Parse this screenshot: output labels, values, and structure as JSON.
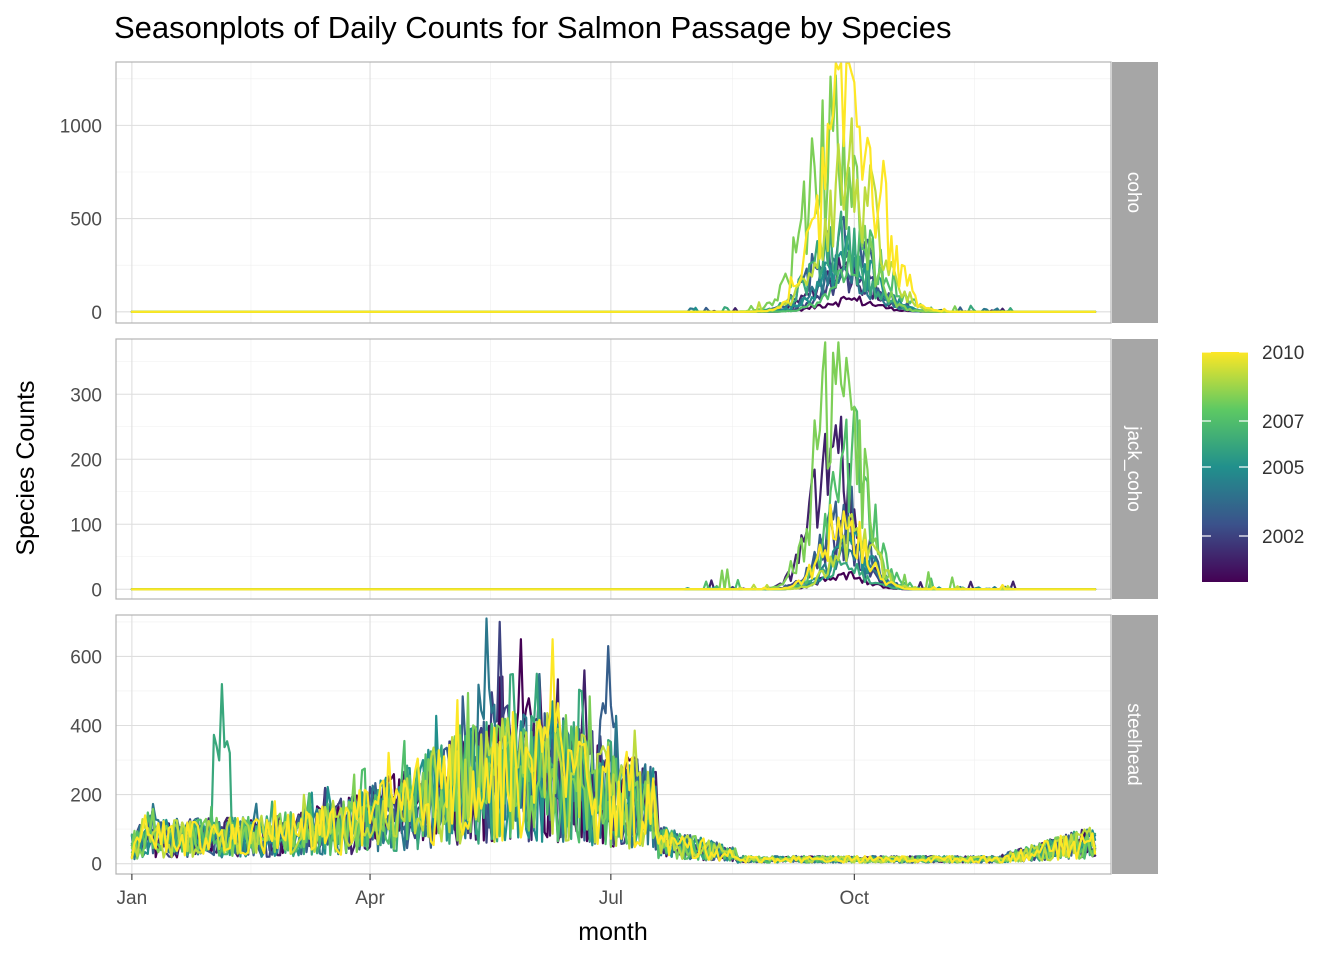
{
  "chart_data": {
    "type": "line",
    "title": "Seasonplots of Daily Counts for Salmon Passage by Species",
    "xlabel": "month",
    "ylabel": "Species Counts",
    "x_unit": "day_of_year",
    "x_ticks": [
      {
        "label": "Jan",
        "value": 1
      },
      {
        "label": "Apr",
        "value": 91
      },
      {
        "label": "Jul",
        "value": 182
      },
      {
        "label": "Oct",
        "value": 274
      }
    ],
    "legend": {
      "position": "right",
      "type": "colorbar",
      "palette": [
        "#440154",
        "#3b528b",
        "#21908c",
        "#5dc963",
        "#fde725"
      ],
      "range": [
        2000,
        2010
      ],
      "ticks": [
        {
          "label": "2002",
          "value": 2002
        },
        {
          "label": "2005",
          "value": 2005
        },
        {
          "label": "2007",
          "value": 2007
        },
        {
          "label": "2010",
          "value": 2010
        }
      ]
    },
    "series_years": [
      2000,
      2001,
      2002,
      2003,
      2004,
      2005,
      2006,
      2007,
      2008,
      2009,
      2010
    ],
    "panels": [
      {
        "strip": "coho",
        "ylim": [
          -60,
          1340
        ],
        "y_ticks": [
          {
            "label": "0",
            "value": 0
          },
          {
            "label": "500",
            "value": 500
          },
          {
            "label": "1000",
            "value": 1000
          }
        ],
        "season": {
          "start": 212,
          "end": 335
        },
        "peaks": {
          "2000": {
            "day": 272,
            "value": 70
          },
          "2001": {
            "day": 270,
            "value": 250
          },
          "2002": {
            "day": 274,
            "value": 210
          },
          "2003": {
            "day": 269,
            "value": 490
          },
          "2004": {
            "day": 270,
            "value": 240
          },
          "2005": {
            "day": 272,
            "value": 320
          },
          "2006": {
            "day": 268,
            "value": 410
          },
          "2007": {
            "day": 278,
            "value": 330
          },
          "2008": {
            "day": 266,
            "value": 970
          },
          "2009": {
            "day": 272,
            "value": 820
          },
          "2010": {
            "day": 273,
            "value": 1280
          }
        }
      },
      {
        "strip": "jack_coho",
        "ylim": [
          -15,
          385
        ],
        "y_ticks": [
          {
            "label": "0",
            "value": 0
          },
          {
            "label": "100",
            "value": 100
          },
          {
            "label": "200",
            "value": 200
          },
          {
            "label": "300",
            "value": 300
          }
        ],
        "season": {
          "start": 210,
          "end": 335
        },
        "peaks": {
          "2000": {
            "day": 270,
            "value": 25
          },
          "2001": {
            "day": 266,
            "value": 220
          },
          "2002": {
            "day": 268,
            "value": 90
          },
          "2003": {
            "day": 270,
            "value": 130
          },
          "2004": {
            "day": 272,
            "value": 60
          },
          "2005": {
            "day": 273,
            "value": 70
          },
          "2006": {
            "day": 270,
            "value": 40
          },
          "2007": {
            "day": 273,
            "value": 210
          },
          "2008": {
            "day": 268,
            "value": 380
          },
          "2009": {
            "day": 274,
            "value": 90
          },
          "2010": {
            "day": 270,
            "value": 120
          }
        }
      },
      {
        "strip": "steelhead",
        "ylim": [
          -30,
          720
        ],
        "y_ticks": [
          {
            "label": "0",
            "value": 0
          },
          {
            "label": "200",
            "value": 200
          },
          {
            "label": "400",
            "value": 400
          },
          {
            "label": "600",
            "value": 600
          }
        ],
        "peaks": {
          "2000": {
            "day": 148,
            "value": 650
          },
          "2001": {
            "day": 172,
            "value": 560
          },
          "2002": {
            "day": 140,
            "value": 700
          },
          "2003": {
            "day": 181,
            "value": 630
          },
          "2004": {
            "day": 135,
            "value": 710
          },
          "2005": {
            "day": 160,
            "value": 470
          },
          "2006": {
            "day": 35,
            "value": 520
          },
          "2007": {
            "day": 125,
            "value": 400
          },
          "2008": {
            "day": 165,
            "value": 430
          },
          "2009": {
            "day": 150,
            "value": 380
          },
          "2010": {
            "day": 160,
            "value": 650
          }
        }
      }
    ]
  }
}
